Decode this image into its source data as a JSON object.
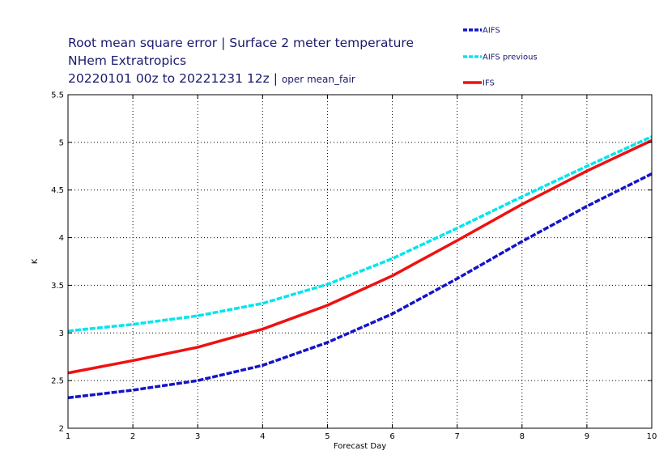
{
  "header": {
    "line1": "Root mean square error | Surface 2 meter temperature",
    "line2": "NHem Extratropics",
    "line3_main": "20220101 00z to 20221231 12z |",
    "line3_sub": "oper mean_fair"
  },
  "chart_data": {
    "type": "line",
    "xlabel": "Forecast Day",
    "ylabel": "K",
    "x": [
      1,
      2,
      3,
      4,
      5,
      6,
      7,
      8,
      9,
      10
    ],
    "xlim": [
      1,
      10
    ],
    "ylim": [
      2,
      5.5
    ],
    "yticks": [
      2,
      2.5,
      3,
      3.5,
      4,
      4.5,
      5,
      5.5
    ],
    "grid": true,
    "legend_position": "top-right",
    "series": [
      {
        "name": "AIFS",
        "color": "#1414c8",
        "style": "dashed",
        "values": [
          2.32,
          2.4,
          2.5,
          2.66,
          2.9,
          3.2,
          3.57,
          3.96,
          4.33,
          4.67
        ]
      },
      {
        "name": "AIFS previous",
        "color": "#00e5ee",
        "style": "dashed",
        "values": [
          3.02,
          3.09,
          3.18,
          3.31,
          3.51,
          3.78,
          4.1,
          4.43,
          4.75,
          5.06
        ]
      },
      {
        "name": "IFS",
        "color": "#ee1111",
        "style": "solid",
        "values": [
          2.58,
          2.71,
          2.85,
          3.04,
          3.29,
          3.6,
          3.97,
          4.35,
          4.7,
          5.02
        ]
      }
    ]
  }
}
